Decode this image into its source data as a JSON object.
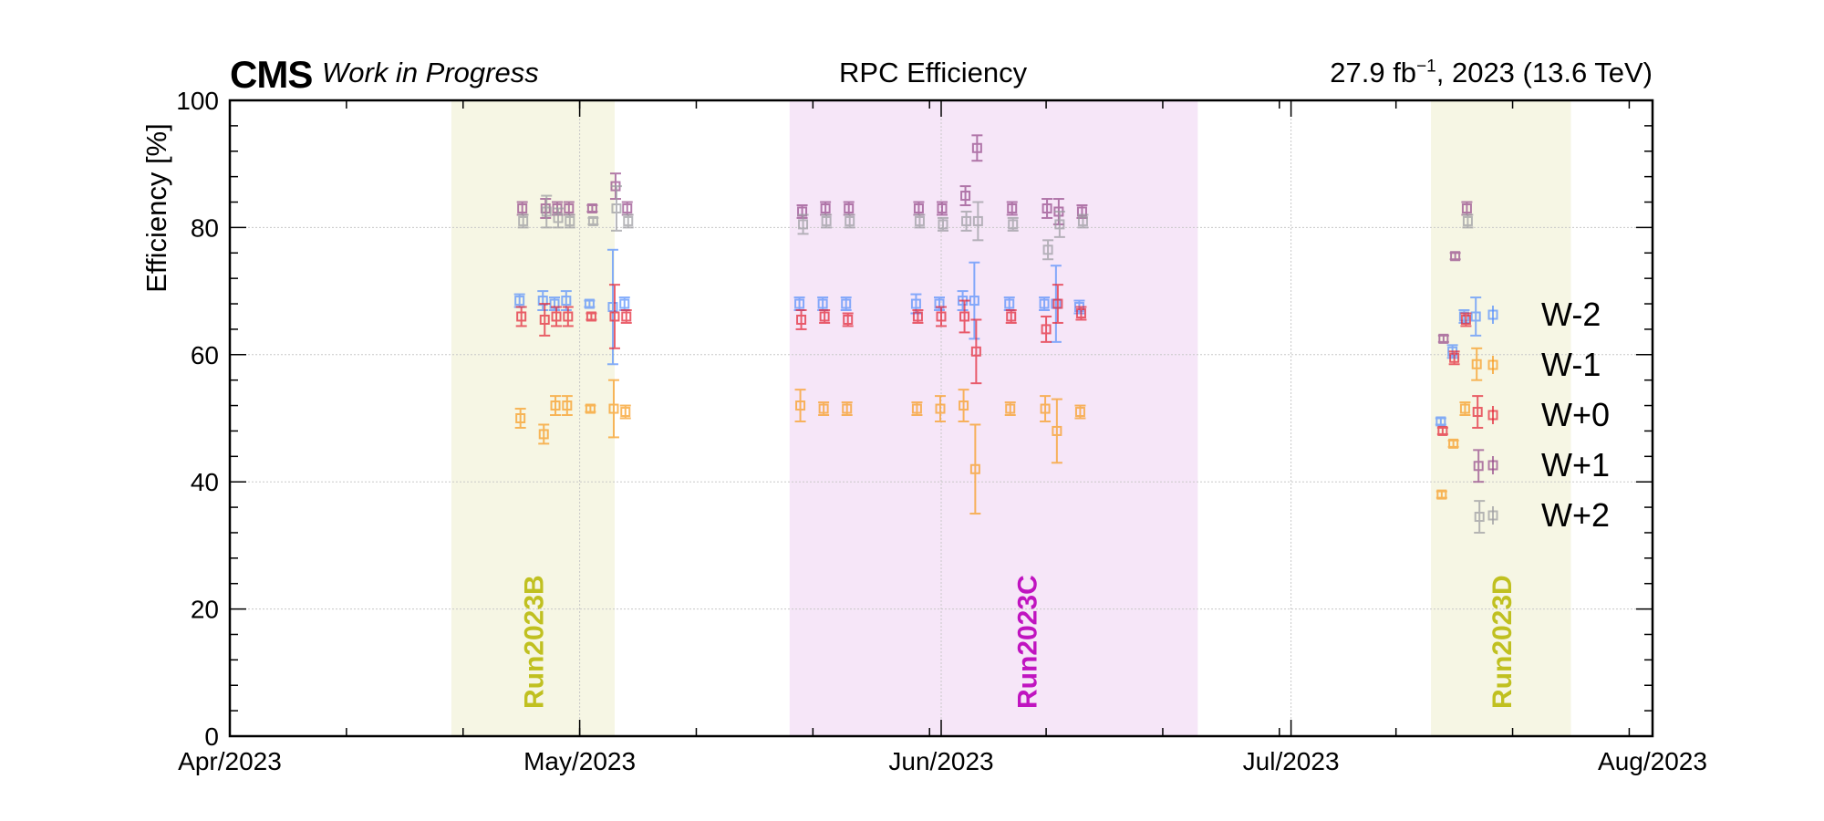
{
  "header": {
    "experiment": "CMS",
    "status": "Work in Progress",
    "title": "RPC Efficiency",
    "lumi_main": "27.9 fb",
    "lumi_sup": "−1",
    "lumi_rest": ", 2023 (13.6 TeV)"
  },
  "colors": {
    "W-2": "#5790fc",
    "W-1": "#f89c20",
    "W+0": "#e42536",
    "W+1": "#964a8b",
    "W+2": "#9c9ca1",
    "run_b_band": "#f6f6e4",
    "run_b_text": "#c0c020",
    "run_c_band": "#f6e6f8",
    "run_c_text": "#c014c0",
    "run_d_band": "#f6f6e4",
    "run_d_text": "#c0c020"
  },
  "chart_data": {
    "type": "scatter",
    "title": "RPC Efficiency",
    "xlabel": "",
    "ylabel": "Efficiency [%]",
    "x_ticks": [
      "Apr/2023",
      "May/2023",
      "Jun/2023",
      "Jul/2023",
      "Aug/2023"
    ],
    "xlim": [
      "2023-04-01",
      "2023-08-01"
    ],
    "ylim": [
      0,
      100
    ],
    "y_ticks": [
      0,
      20,
      40,
      60,
      80,
      100
    ],
    "grid": true,
    "legend": {
      "position": "right",
      "entries": [
        "W-2",
        "W-1",
        "W+0",
        "W+1",
        "W+2"
      ]
    },
    "runs": [
      {
        "label": "Run2023B",
        "start": "2023-04-20",
        "end": "2023-05-04"
      },
      {
        "label": "Run2023C",
        "start": "2023-05-19",
        "end": "2023-06-23"
      },
      {
        "label": "Run2023D",
        "start": "2023-07-13",
        "end": "2023-07-25"
      }
    ],
    "dates": [
      "2023-04-26",
      "2023-04-28",
      "2023-04-29",
      "2023-04-30",
      "2023-05-02",
      "2023-05-04",
      "2023-05-05",
      "2023-05-20",
      "2023-05-22",
      "2023-05-24",
      "2023-05-30",
      "2023-06-01",
      "2023-06-03",
      "2023-06-04",
      "2023-06-07",
      "2023-06-10",
      "2023-06-11",
      "2023-06-13",
      "2023-07-14",
      "2023-07-15",
      "2023-07-16",
      "2023-07-17"
    ],
    "series": [
      {
        "name": "W-2",
        "values": [
          68.5,
          68.5,
          68.0,
          68.5,
          68.0,
          67.5,
          68.0,
          68.0,
          68.0,
          68.0,
          68.0,
          68.0,
          68.5,
          68.5,
          68.0,
          68.0,
          68.0,
          67.5,
          49.5,
          60.5,
          66.0,
          66.0
        ],
        "errors": [
          1.0,
          1.5,
          1.0,
          1.5,
          0.5,
          9.0,
          1.0,
          1.0,
          1.0,
          1.0,
          1.5,
          1.0,
          1.5,
          6.0,
          1.0,
          1.0,
          6.0,
          1.0,
          0.5,
          1.0,
          1.0,
          3.0
        ]
      },
      {
        "name": "W-1",
        "values": [
          50.0,
          47.5,
          52.0,
          52.0,
          51.5,
          51.5,
          51.0,
          52.0,
          51.5,
          51.5,
          51.5,
          51.5,
          52.0,
          42.0,
          51.5,
          51.5,
          48.0,
          51.0,
          38.0,
          46.0,
          51.5,
          58.5
        ],
        "errors": [
          1.5,
          1.5,
          1.5,
          1.5,
          0.5,
          4.5,
          1.0,
          2.5,
          1.0,
          1.0,
          1.0,
          2.0,
          2.5,
          7.0,
          1.0,
          2.0,
          5.0,
          1.0,
          0.5,
          0.5,
          1.0,
          2.5
        ]
      },
      {
        "name": "W+0",
        "values": [
          66.0,
          65.5,
          66.0,
          66.0,
          66.0,
          66.0,
          66.0,
          65.5,
          66.0,
          65.5,
          66.0,
          66.0,
          66.0,
          60.5,
          66.0,
          64.0,
          68.0,
          66.5,
          48.0,
          59.5,
          65.5,
          51.0
        ],
        "errors": [
          1.5,
          2.5,
          1.5,
          1.5,
          0.5,
          5.0,
          1.0,
          1.5,
          1.0,
          1.0,
          1.0,
          1.5,
          2.5,
          5.0,
          1.0,
          2.0,
          3.0,
          1.0,
          0.5,
          1.0,
          1.0,
          2.5
        ]
      },
      {
        "name": "W+1",
        "values": [
          83.0,
          83.0,
          83.0,
          83.0,
          83.0,
          86.5,
          83.0,
          82.5,
          83.0,
          83.0,
          83.0,
          83.0,
          85.0,
          92.5,
          83.0,
          83.0,
          82.5,
          82.5,
          62.5,
          75.5,
          83.0,
          42.5
        ],
        "errors": [
          1.0,
          1.5,
          1.0,
          1.0,
          0.5,
          2.0,
          1.0,
          1.0,
          1.0,
          1.0,
          1.0,
          1.0,
          1.5,
          2.0,
          1.0,
          1.5,
          2.0,
          1.0,
          0.5,
          0.5,
          1.0,
          2.5
        ]
      },
      {
        "name": "W+2",
        "values": [
          81.0,
          82.5,
          81.5,
          81.0,
          81.0,
          83.0,
          81.0,
          80.5,
          81.0,
          81.0,
          81.0,
          80.5,
          81.0,
          81.0,
          80.5,
          76.5,
          80.5,
          81.0,
          null,
          null,
          81.0,
          34.5
        ],
        "errors": [
          1.0,
          2.5,
          1.5,
          1.0,
          0.5,
          3.5,
          1.0,
          1.5,
          1.0,
          1.0,
          1.0,
          1.0,
          1.5,
          3.0,
          1.0,
          1.5,
          2.0,
          1.0,
          null,
          null,
          1.0,
          2.5
        ]
      }
    ]
  }
}
